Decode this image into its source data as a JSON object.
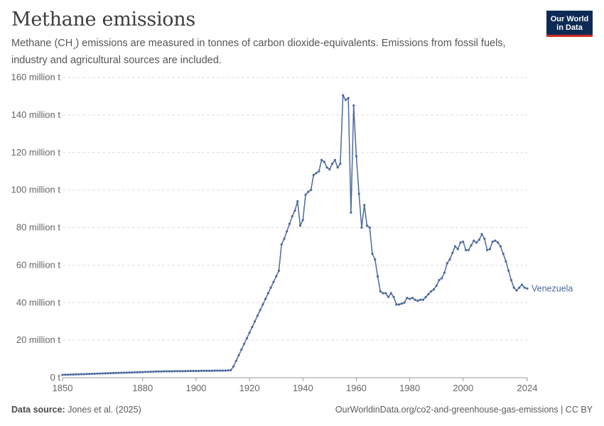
{
  "header": {
    "title": "Methane emissions",
    "subtitle_parts": [
      "Methane (CH",
      "₄",
      ") emissions are measured in tonnes of carbon dioxide-equivalents. Emissions from fossil fuels, industry and agricultural sources are included."
    ],
    "logo_line1": "Our World",
    "logo_line2": "in Data"
  },
  "footer": {
    "source_label": "Data source:",
    "source_text": "Jones et al. (2025)",
    "url_text": "OurWorldinData.org/co2-and-greenhouse-gas-emissions | CC BY"
  },
  "colors": {
    "series": "#4c6a9c",
    "grid": "#dddddd",
    "axis_text": "#666666"
  },
  "chart_data": {
    "type": "line",
    "title": "Methane emissions",
    "xlim": [
      1850,
      2024
    ],
    "ylim": [
      0,
      160
    ],
    "y_unit": "million t",
    "x_ticks": [
      "1850",
      "1880",
      "1900",
      "1920",
      "1940",
      "1960",
      "1980",
      "2000",
      "2024"
    ],
    "y_ticks": [
      "0 t",
      "20 million t",
      "40 million t",
      "60 million t",
      "80 million t",
      "100 million t",
      "120 million t",
      "140 million t",
      "160 million t"
    ],
    "series": [
      {
        "name": "Venezuela",
        "x": [
          1850,
          1851,
          1852,
          1853,
          1854,
          1855,
          1856,
          1857,
          1858,
          1859,
          1860,
          1861,
          1862,
          1863,
          1864,
          1865,
          1866,
          1867,
          1868,
          1869,
          1870,
          1871,
          1872,
          1873,
          1874,
          1875,
          1876,
          1877,
          1878,
          1879,
          1880,
          1881,
          1882,
          1883,
          1884,
          1885,
          1886,
          1887,
          1888,
          1889,
          1890,
          1891,
          1892,
          1893,
          1894,
          1895,
          1896,
          1897,
          1898,
          1899,
          1900,
          1901,
          1902,
          1903,
          1904,
          1905,
          1906,
          1907,
          1908,
          1909,
          1910,
          1911,
          1912,
          1913,
          1914,
          1915,
          1916,
          1917,
          1918,
          1919,
          1920,
          1921,
          1922,
          1923,
          1924,
          1925,
          1926,
          1927,
          1928,
          1929,
          1930,
          1931,
          1932,
          1933,
          1934,
          1935,
          1936,
          1937,
          1938,
          1939,
          1940,
          1941,
          1942,
          1943,
          1944,
          1945,
          1946,
          1947,
          1948,
          1949,
          1950,
          1951,
          1952,
          1953,
          1954,
          1955,
          1956,
          1957,
          1958,
          1959,
          1960,
          1961,
          1962,
          1963,
          1964,
          1965,
          1966,
          1967,
          1968,
          1969,
          1970,
          1971,
          1972,
          1973,
          1974,
          1975,
          1976,
          1977,
          1978,
          1979,
          1980,
          1981,
          1982,
          1983,
          1984,
          1985,
          1986,
          1987,
          1988,
          1989,
          1990,
          1991,
          1992,
          1993,
          1994,
          1995,
          1996,
          1997,
          1998,
          1999,
          2000,
          2001,
          2002,
          2003,
          2004,
          2005,
          2006,
          2007,
          2008,
          2009,
          2010,
          2011,
          2012,
          2013,
          2014,
          2015,
          2016,
          2017,
          2018,
          2019,
          2020,
          2021,
          2022,
          2023,
          2024
        ],
        "y": [
          1.5,
          1.6,
          1.6,
          1.7,
          1.7,
          1.8,
          1.8,
          1.9,
          1.9,
          2.0,
          2.0,
          2.1,
          2.1,
          2.2,
          2.2,
          2.3,
          2.3,
          2.4,
          2.4,
          2.5,
          2.5,
          2.6,
          2.6,
          2.7,
          2.7,
          2.8,
          2.8,
          2.9,
          2.9,
          3.0,
          3.0,
          3.1,
          3.1,
          3.2,
          3.2,
          3.3,
          3.3,
          3.3,
          3.4,
          3.4,
          3.4,
          3.4,
          3.5,
          3.5,
          3.5,
          3.5,
          3.5,
          3.6,
          3.6,
          3.6,
          3.6,
          3.6,
          3.7,
          3.7,
          3.7,
          3.7,
          3.7,
          3.8,
          3.8,
          3.8,
          3.8,
          3.8,
          3.9,
          4.0,
          6.0,
          9.0,
          12.0,
          15.0,
          18.0,
          21.0,
          24.0,
          27.0,
          30.0,
          33.0,
          36.0,
          39.0,
          42.0,
          45.0,
          48.0,
          51.0,
          54.0,
          57.0,
          71.0,
          74.0,
          78.0,
          82.0,
          86.0,
          89.0,
          94.0,
          81.0,
          84.0,
          97.5,
          99.0,
          100.0,
          108.0,
          109.0,
          110.0,
          116.0,
          115.0,
          112.0,
          111.0,
          114.0,
          116.0,
          112.0,
          114.0,
          150.5,
          148.0,
          149.0,
          88.0,
          145.0,
          118.0,
          98.0,
          80.0,
          92.0,
          81.0,
          80.0,
          66.0,
          63.0,
          54.0,
          46.0,
          45.0,
          45.0,
          43.0,
          45.0,
          43.0,
          39.0,
          39.0,
          39.5,
          40.0,
          42.5,
          42.0,
          42.5,
          41.5,
          41.0,
          41.5,
          41.5,
          43.0,
          44.5,
          46.0,
          47.0,
          49.0,
          52.0,
          53.0,
          56.0,
          61.0,
          63.0,
          66.5,
          70.0,
          68.5,
          72.0,
          72.5,
          68.0,
          68.0,
          70.5,
          73.0,
          72.0,
          73.5,
          76.5,
          74.0,
          68.0,
          68.5,
          72.5,
          73.0,
          72.0,
          70.0,
          66.0,
          62.0,
          57.0,
          52.0,
          48.0,
          46.5,
          48.0,
          49.5,
          48.0,
          47.5
        ]
      }
    ]
  }
}
